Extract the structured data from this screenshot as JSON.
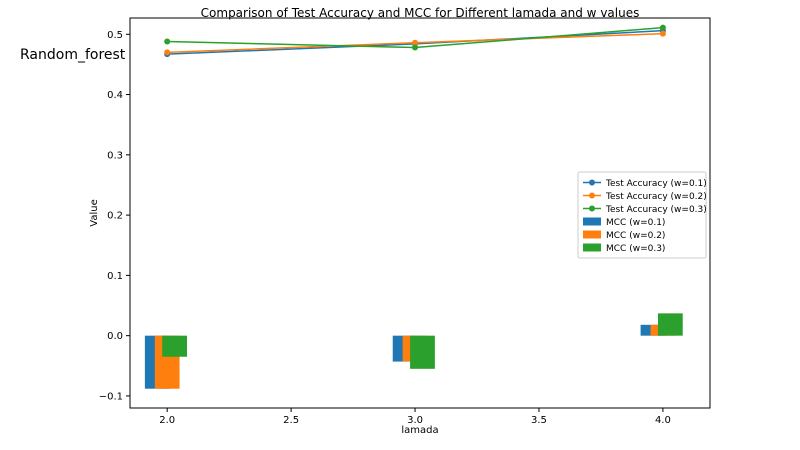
{
  "side_label": "Random_forest",
  "chart_data": {
    "type": "line+bar",
    "title": "Comparison of Test Accuracy and MCC for Different lamada and w values",
    "xlabel": "lamada",
    "ylabel": "Value",
    "xlim": [
      1.85,
      4.19
    ],
    "ylim": [
      -0.12,
      0.527
    ],
    "x_ticks": [
      2.0,
      2.5,
      3.0,
      3.5,
      4.0
    ],
    "x_tick_labels": [
      "2.0",
      "2.5",
      "3.0",
      "3.5",
      "4.0"
    ],
    "y_ticks": [
      -0.1,
      0.0,
      0.1,
      0.2,
      0.3,
      0.4,
      0.5
    ],
    "y_tick_labels": [
      "−0.1",
      "0.0",
      "0.1",
      "0.2",
      "0.3",
      "0.4",
      "0.5"
    ],
    "legend_position": "center-right",
    "x": [
      2.0,
      3.0,
      4.0
    ],
    "line_series": [
      {
        "name": "Test Accuracy (w=0.1)",
        "color": "#1f77b4",
        "values": [
          0.467,
          0.484,
          0.506
        ]
      },
      {
        "name": "Test Accuracy (w=0.2)",
        "color": "#ff7f0e",
        "values": [
          0.47,
          0.486,
          0.501
        ]
      },
      {
        "name": "Test Accuracy (w=0.3)",
        "color": "#2ca02c",
        "values": [
          0.488,
          0.478,
          0.511
        ]
      }
    ],
    "bar_series": [
      {
        "name": "MCC (w=0.1)",
        "color": "#1f77b4",
        "offset": -0.04,
        "width": 0.1,
        "values": [
          -0.088,
          -0.043,
          0.018
        ]
      },
      {
        "name": "MCC (w=0.2)",
        "color": "#ff7f0e",
        "offset": 0.0,
        "width": 0.1,
        "values": [
          -0.088,
          -0.043,
          0.018
        ]
      },
      {
        "name": "MCC (w=0.3)",
        "color": "#2ca02c",
        "offset": 0.03,
        "width": 0.1,
        "values": [
          -0.035,
          -0.055,
          0.037
        ]
      }
    ]
  }
}
